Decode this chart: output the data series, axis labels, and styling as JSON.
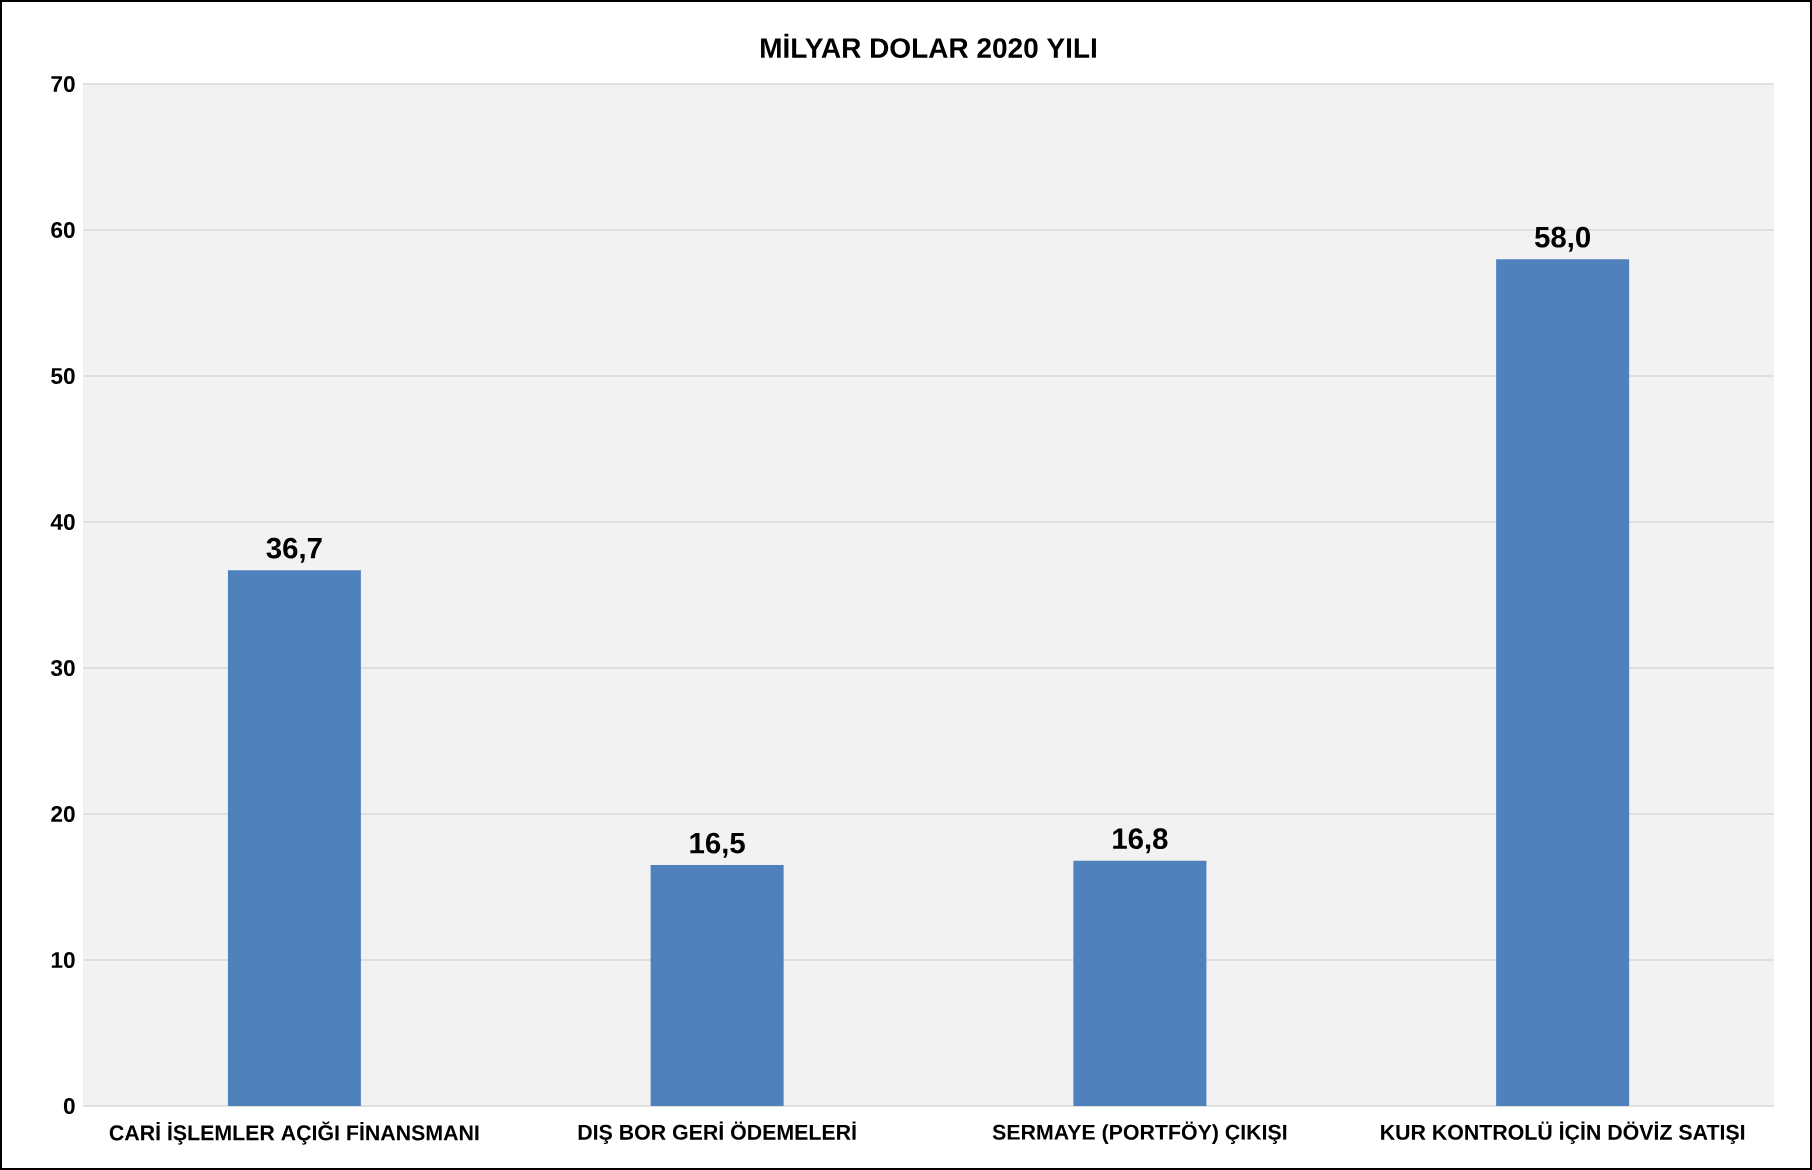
{
  "chart_data": {
    "type": "bar",
    "title": "MİLYAR DOLAR 2020 YILI",
    "categories": [
      "CARİ İŞLEMLER AÇIĞI FİNANSMANI",
      "DIŞ BOR GERİ ÖDEMELERİ",
      "SERMAYE (PORTFÖY) ÇIKIŞI",
      "KUR KONTROLÜ İÇİN DÖVİZ SATIŞI"
    ],
    "values": [
      36.7,
      16.5,
      16.8,
      58.0
    ],
    "value_labels": [
      "36,7",
      "16,5",
      "16,8",
      "58,0"
    ],
    "color": "#4f81bd",
    "ylim": [
      0,
      70
    ],
    "yticks": [
      0,
      10,
      20,
      30,
      40,
      50,
      60,
      70
    ],
    "grid": "y"
  }
}
